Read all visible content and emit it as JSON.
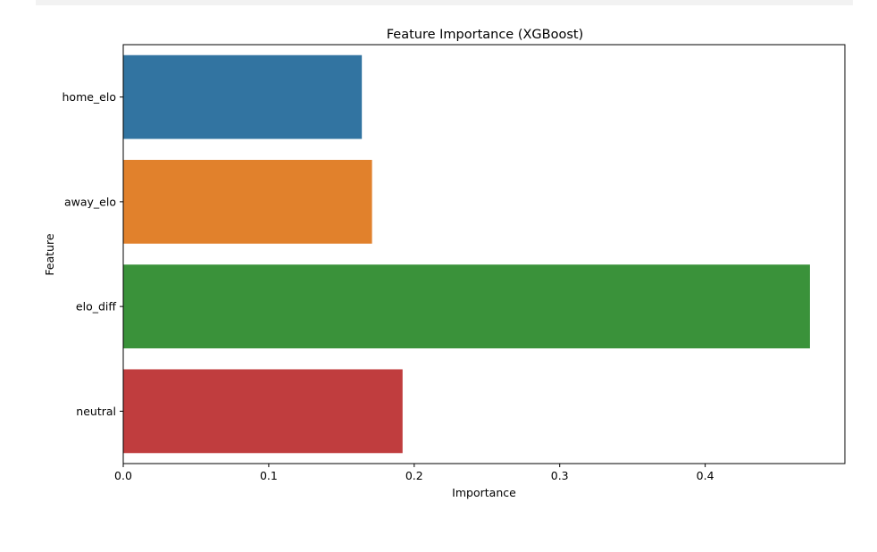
{
  "chart_data": {
    "type": "bar",
    "orientation": "horizontal",
    "title": "Feature Importance (XGBoost)",
    "xlabel": "Importance",
    "ylabel": "Feature",
    "categories": [
      "home_elo",
      "away_elo",
      "elo_diff",
      "neutral"
    ],
    "values": [
      0.164,
      0.171,
      0.472,
      0.192
    ],
    "colors": [
      "#3274a1",
      "#e1812c",
      "#3a923a",
      "#c03d3e"
    ],
    "xlim": [
      0,
      0.496
    ],
    "xticks": [
      "0.0",
      "0.1",
      "0.2",
      "0.3",
      "0.4"
    ],
    "grid": false
  }
}
